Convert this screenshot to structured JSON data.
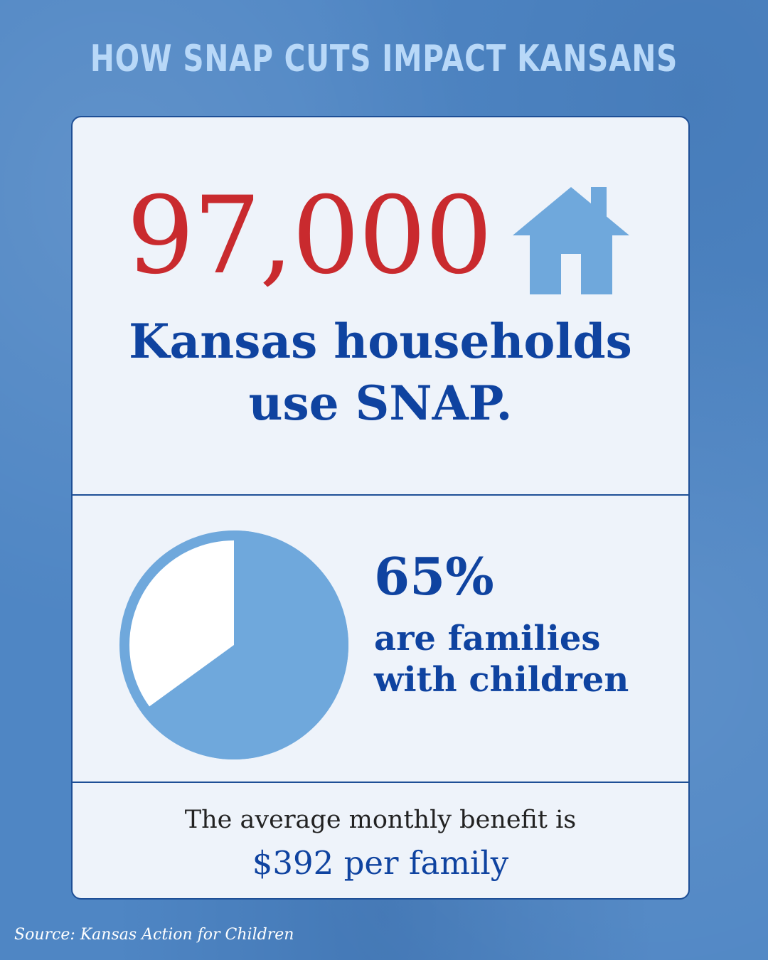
{
  "header": {
    "title": "HOW SNAP CUTS IMPACT KANSANS"
  },
  "households": {
    "value": "97,000",
    "line1": "Kansas households",
    "line2": "use SNAP.",
    "icon": "house-icon"
  },
  "families": {
    "percent_label": "65%",
    "percent": 65,
    "line1": "are families",
    "line2": "with children",
    "icon": "pie-chart-icon"
  },
  "benefit": {
    "line1": "The average monthly benefit is",
    "line2": "$392 per family"
  },
  "source": "Source: Kansas Action for Children",
  "colors": {
    "background": "#4f86c4",
    "title": "#b8d8f8",
    "card": "#eef3fa",
    "accent_red": "#c92a2e",
    "navy": "#0f43a0",
    "light_blue": "#6fa8dc"
  }
}
